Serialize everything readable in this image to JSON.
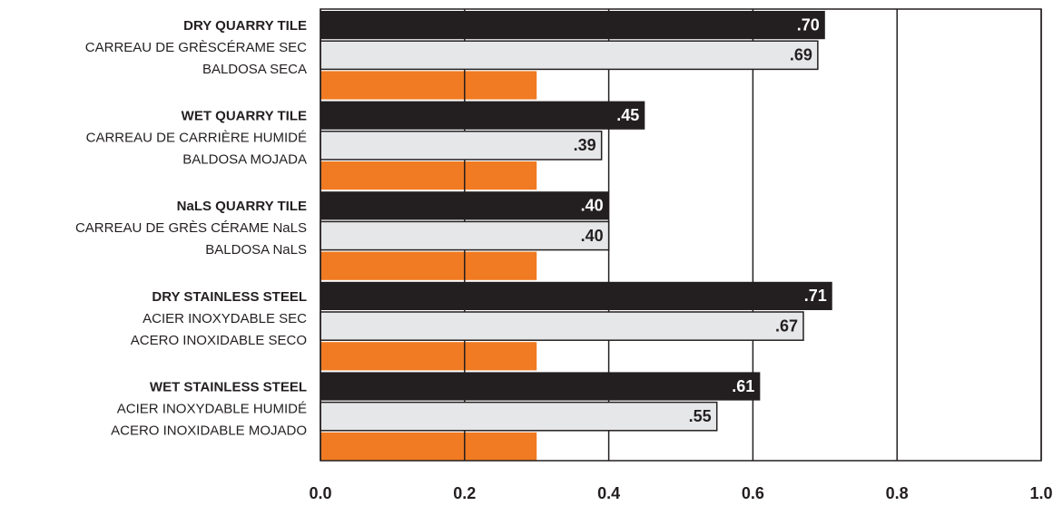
{
  "chart_data": {
    "type": "bar",
    "orientation": "horizontal",
    "categories": [
      [
        "DRY QUARRY TILE",
        "CARREAU DE GRÈSCÉRAME SEC",
        "BALDOSA SECA"
      ],
      [
        "WET QUARRY TILE",
        "CARREAU DE CARRIÈRE HUMIDÉ",
        "BALDOSA MOJADA"
      ],
      [
        "NaLS QUARRY TILE",
        "CARREAU DE GRÈS CÉRAME NaLS",
        "BALDOSA NaLS"
      ],
      [
        "DRY STAINLESS STEEL",
        "ACIER INOXYDABLE SEC",
        "ACERO INOXIDABLE SECO"
      ],
      [
        "WET STAINLESS STEEL",
        "ACIER INOXYDABLE HUMIDÉ",
        "ACERO INOXIDABLE MOJADO"
      ]
    ],
    "series": [
      {
        "color": "#231f20",
        "values": [
          0.7,
          0.45,
          0.4,
          0.71,
          0.61
        ],
        "value_labels": [
          ".70",
          ".45",
          ".40",
          ".71",
          ".61"
        ]
      },
      {
        "color": "#e6e7e8",
        "values": [
          0.69,
          0.39,
          0.4,
          0.67,
          0.55
        ],
        "value_labels": [
          ".69",
          ".39",
          ".40",
          ".67",
          ".55"
        ]
      },
      {
        "color": "#f07b22",
        "values": [
          0.3,
          0.3,
          0.3,
          0.3,
          0.3
        ]
      }
    ],
    "xlim": [
      0,
      1
    ],
    "xticks": [
      {
        "value": 0,
        "label": "0.0"
      },
      0.2,
      0.4,
      0.6,
      0.8,
      {
        "value": 1,
        "label": "1.0"
      }
    ],
    "grid": true
  }
}
